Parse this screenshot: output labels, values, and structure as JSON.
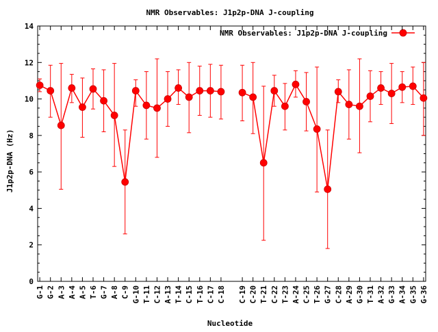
{
  "chart_data": {
    "type": "line",
    "title": "NMR Observables: J1p2p-DNA J-coupling",
    "xlabel": "Nucleotide",
    "ylabel": "J1p2p-DNA (Hz)",
    "ylim": [
      0,
      14
    ],
    "yticks": [
      0,
      2,
      4,
      6,
      8,
      10,
      12,
      14
    ],
    "grid": false,
    "legend_position": "top-right",
    "series_color": "#ff0000",
    "x_positions": [
      1,
      2,
      3,
      4,
      5,
      6,
      7,
      8,
      9,
      10,
      11,
      12,
      13,
      14,
      15,
      16,
      17,
      18,
      20,
      21,
      22,
      23,
      24,
      25,
      26,
      27,
      28,
      29,
      30,
      31,
      32,
      33,
      34,
      35,
      36,
      37
    ],
    "xlim": [
      0.8,
      37.2
    ],
    "categories": [
      "G-1",
      "G-2",
      "A-3",
      "A-4",
      "A-5",
      "T-6",
      "G-7",
      "A-8",
      "C-9",
      "G-10",
      "T-11",
      "C-12",
      "A-13",
      "T-14",
      "C-15",
      "T-16",
      "C-17",
      "C-18",
      "C-19",
      "C-20",
      "T-21",
      "C-22",
      "T-23",
      "A-24",
      "C-25",
      "T-26",
      "G-27",
      "C-28",
      "A-29",
      "G-30",
      "T-31",
      "A-32",
      "G-33",
      "A-34",
      "G-35",
      "G-36"
    ],
    "series": [
      {
        "name": "NMR Observables: J1p2p-DNA J-coupling",
        "values": [
          10.75,
          10.45,
          8.55,
          10.6,
          9.55,
          10.55,
          9.9,
          9.1,
          5.45,
          10.45,
          9.65,
          9.5,
          10.0,
          10.6,
          10.1,
          10.45,
          10.45,
          10.4,
          10.35,
          10.1,
          6.5,
          10.45,
          9.6,
          10.8,
          9.85,
          8.35,
          5.05,
          10.4,
          9.7,
          9.6,
          10.15,
          10.6,
          10.3,
          10.65,
          10.7,
          10.05
        ],
        "error_low": [
          10.4,
          9.0,
          5.05,
          9.8,
          7.9,
          9.45,
          8.2,
          6.3,
          2.6,
          9.6,
          7.8,
          6.8,
          8.5,
          9.7,
          8.15,
          9.1,
          9.0,
          8.9,
          8.8,
          8.1,
          2.25,
          9.6,
          8.3,
          10.1,
          8.25,
          4.9,
          1.8,
          9.8,
          7.8,
          7.05,
          8.75,
          9.7,
          8.65,
          9.8,
          9.7,
          8.0
        ],
        "error_high": [
          11.1,
          11.85,
          11.95,
          11.35,
          11.15,
          11.65,
          11.6,
          11.95,
          8.3,
          11.05,
          11.5,
          12.2,
          11.5,
          11.6,
          12.0,
          11.8,
          11.9,
          11.85,
          11.85,
          12.0,
          10.7,
          11.3,
          10.85,
          11.55,
          11.45,
          11.75,
          8.3,
          11.05,
          11.6,
          12.2,
          11.55,
          11.5,
          11.95,
          11.5,
          11.75,
          12.0
        ]
      }
    ]
  }
}
